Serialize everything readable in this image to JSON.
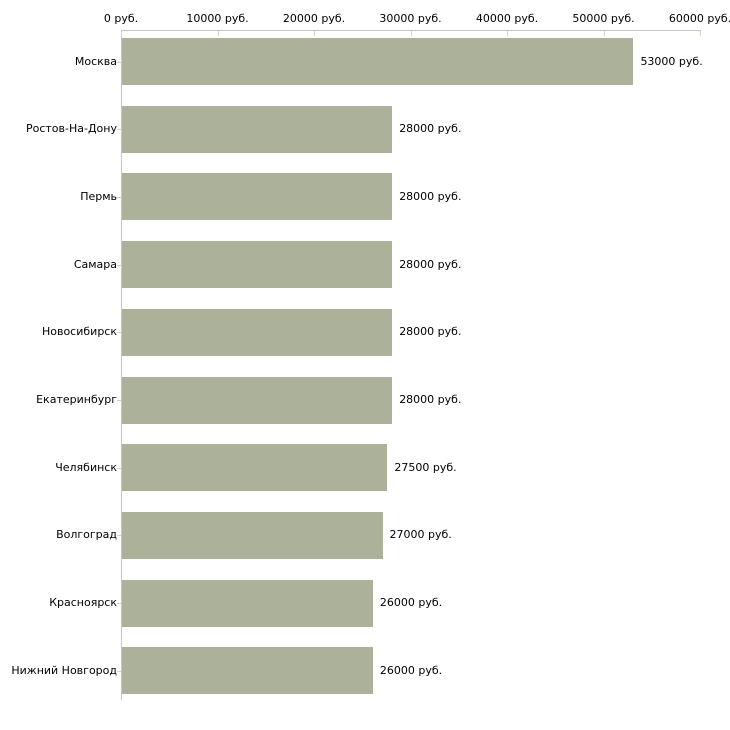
{
  "chart_data": {
    "type": "bar",
    "orientation": "horizontal",
    "title": "",
    "categories": [
      "Москва",
      "Ростов-На-Дону",
      "Пермь",
      "Самара",
      "Новосибирск",
      "Екатеринбург",
      "Челябинск",
      "Волгоград",
      "Красноярск",
      "Нижний Новгород"
    ],
    "values": [
      53000,
      28000,
      28000,
      28000,
      28000,
      28000,
      27500,
      27000,
      26000,
      26000
    ],
    "value_labels": [
      "53000 руб.",
      "28000 руб.",
      "28000 руб.",
      "28000 руб.",
      "28000 руб.",
      "28000 руб.",
      "27500 руб.",
      "27000 руб.",
      "26000 руб.",
      "26000 руб."
    ],
    "x_axis": {
      "position": "top",
      "min": 0,
      "max": 60000,
      "tick_interval": 10000,
      "tick_values": [
        0,
        10000,
        20000,
        30000,
        40000,
        50000,
        60000
      ],
      "tick_labels": [
        "0 руб.",
        "10000 руб.",
        "20000 руб.",
        "30000 руб.",
        "40000 руб.",
        "50000 руб.",
        "60000 руб."
      ]
    },
    "legend": "none",
    "grid": "off",
    "colors": {
      "bar": "#abb299",
      "axis_line": "#c6c6c0",
      "tick": "#d6d6b2",
      "text": "#000000",
      "background": "#ffffff"
    }
  }
}
